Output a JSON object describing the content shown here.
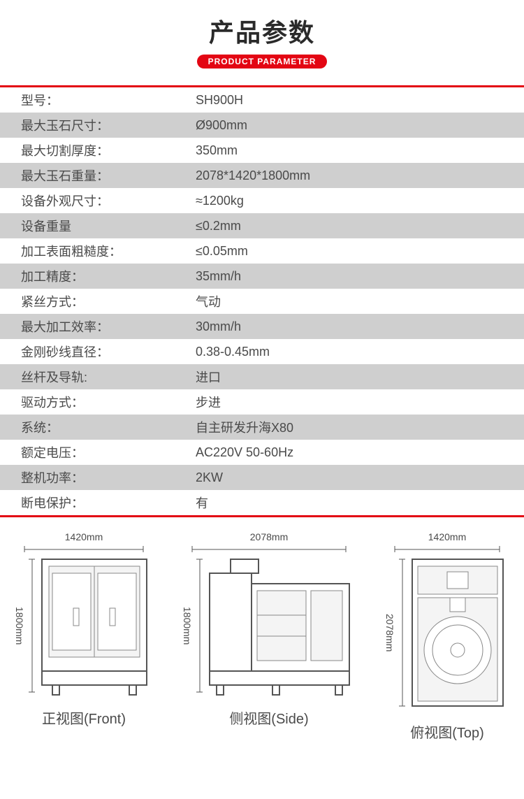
{
  "header": {
    "title_cn": "产品参数",
    "title_en": "PRODUCT PARAMETER",
    "accent_color": "#e30613"
  },
  "table": {
    "border_color": "#e30613",
    "row_bg_even": "#ffffff",
    "row_bg_odd": "#cfcfcf",
    "text_color": "#4a4a4a",
    "rows": [
      {
        "label": "型号：",
        "value": "SH900H"
      },
      {
        "label": "最大玉石尺寸：",
        "value": "Ø900mm"
      },
      {
        "label": "最大切割厚度：",
        "value": "350mm"
      },
      {
        "label": "最大玉石重量：",
        "value": "2078*1420*1800mm"
      },
      {
        "label": "设备外观尺寸：",
        "value": "≈1200kg"
      },
      {
        "label": "设备重量",
        "value": "≤0.2mm"
      },
      {
        "label": "加工表面粗糙度：",
        "value": "≤0.05mm"
      },
      {
        "label": "加工精度：",
        "value": "35mm/h"
      },
      {
        "label": "紧丝方式：",
        "value": "气动"
      },
      {
        "label": "最大加工效率：",
        "value": "30mm/h"
      },
      {
        "label": "金刚砂线直径：",
        "value": "0.38-0.45mm"
      },
      {
        "label": "丝杆及导轨:",
        "value": "进口"
      },
      {
        "label": "驱动方式：",
        "value": "步进"
      },
      {
        "label": "系统：",
        "value": "自主研发升海X80"
      },
      {
        "label": "额定电压：",
        "value": "AC220V 50-60Hz"
      },
      {
        "label": "整机功率：",
        "value": "2KW"
      },
      {
        "label": "断电保护：",
        "value": "有"
      }
    ]
  },
  "diagrams": {
    "front": {
      "caption": "正视图(Front)",
      "width_label": "1420mm",
      "height_label": "1800mm"
    },
    "side": {
      "caption": "侧视图(Side)",
      "width_label": "2078mm",
      "height_label": "1800mm"
    },
    "top": {
      "caption": "俯视图(Top)",
      "width_label": "1420mm",
      "height_label": "2078mm"
    }
  }
}
